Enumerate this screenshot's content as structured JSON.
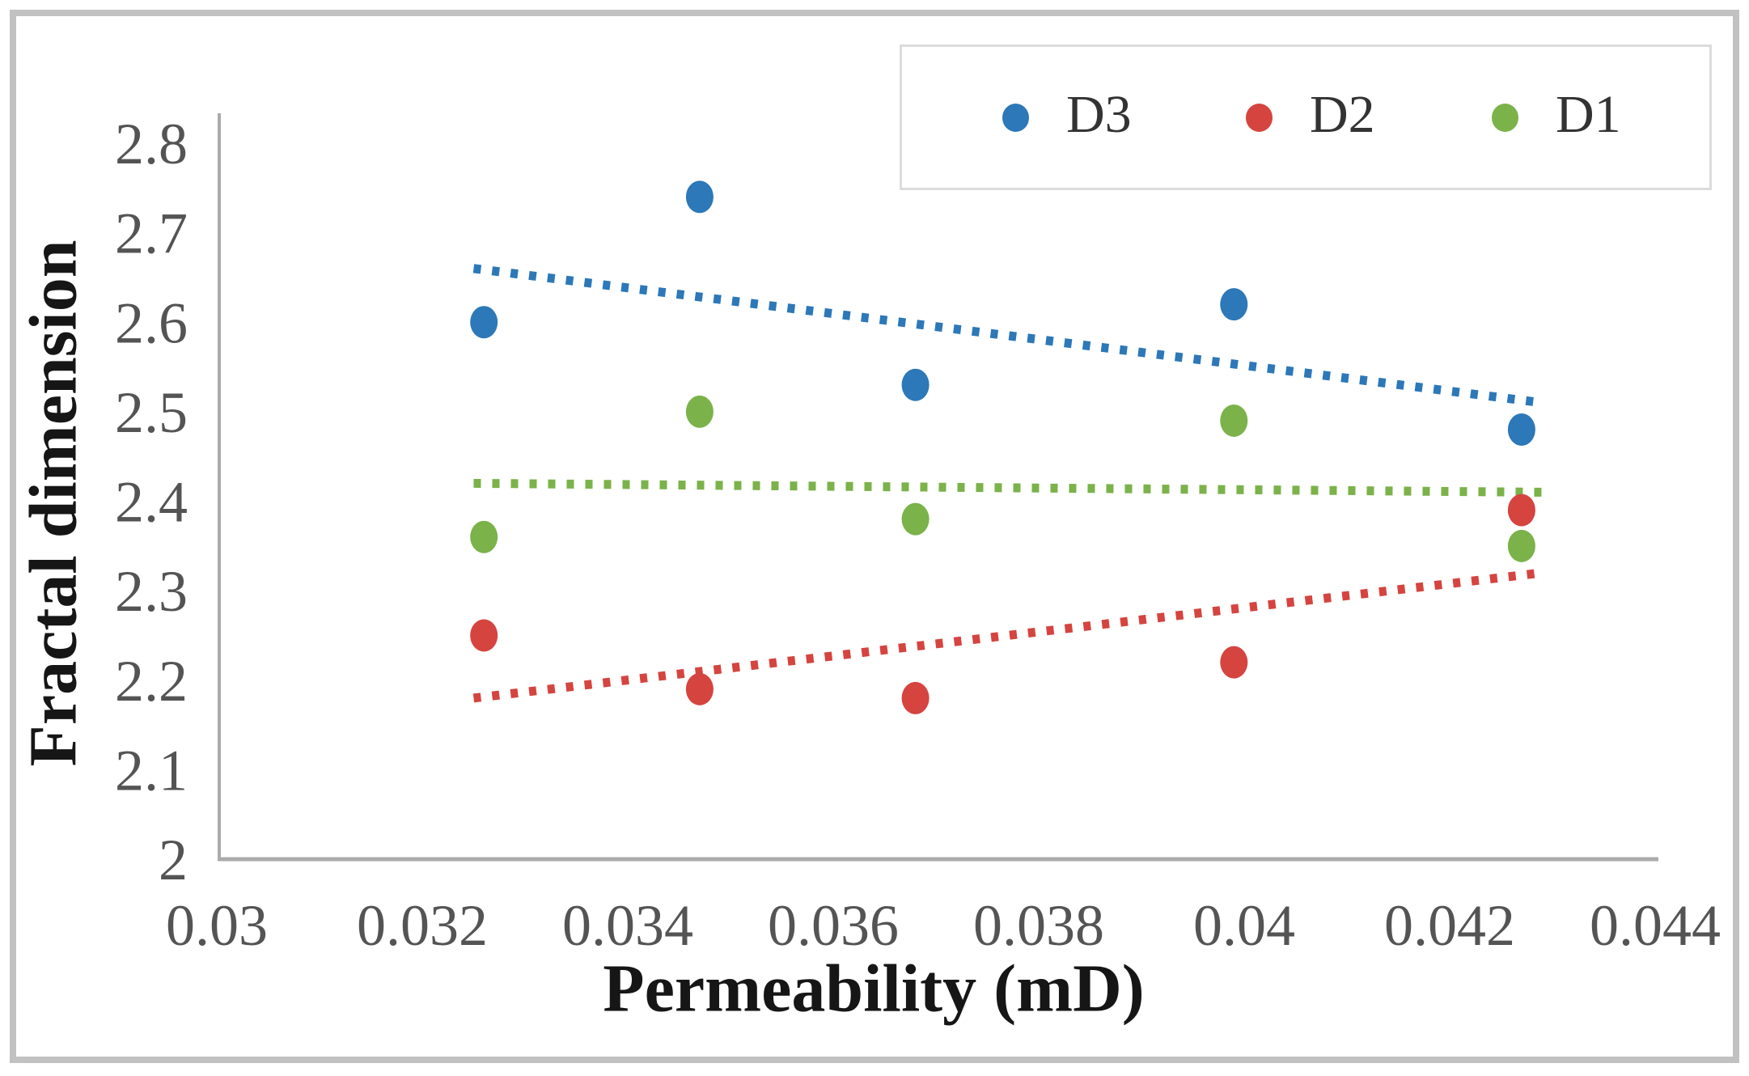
{
  "chart_data": {
    "type": "scatter",
    "title": "",
    "xlabel": "Permeability (mD)",
    "ylabel": "Fractal dimension",
    "xlim": [
      0.03,
      0.044
    ],
    "ylim": [
      2.0,
      2.8
    ],
    "grid": false,
    "legend_position": "top-right",
    "x_ticks": [
      0.03,
      0.032,
      0.034,
      0.036,
      0.038,
      0.04,
      0.042,
      0.044
    ],
    "x_tick_labels": [
      "0.03",
      "0.032",
      "0.034",
      "0.036",
      "0.038",
      "0.04",
      "0.042",
      "0.044"
    ],
    "y_ticks": [
      2,
      2.1,
      2.2,
      2.3,
      2.4,
      2.5,
      2.6,
      2.7,
      2.8
    ],
    "y_tick_labels": [
      "2",
      "2.1",
      "2.2",
      "2.3",
      "2.4",
      "2.5",
      "2.6",
      "2.7",
      "2.8"
    ],
    "x": [
      0.0326,
      0.0347,
      0.0368,
      0.0399,
      0.0427
    ],
    "series": [
      {
        "name": "D3",
        "color": "#2C78B8",
        "values": [
          2.6,
          2.74,
          2.53,
          2.62,
          2.48
        ],
        "trendline": {
          "style": "dotted",
          "x_start": 0.0325,
          "y_start": 2.66,
          "x_end": 0.0429,
          "y_end": 2.51
        }
      },
      {
        "name": "D2",
        "color": "#D5443F",
        "values": [
          2.25,
          2.19,
          2.18,
          2.22,
          2.39
        ],
        "trendline": {
          "style": "dotted",
          "x_start": 0.0325,
          "y_start": 2.18,
          "x_end": 0.0429,
          "y_end": 2.32
        }
      },
      {
        "name": "D1",
        "color": "#7BB24A",
        "values": [
          2.36,
          2.5,
          2.38,
          2.49,
          2.35
        ],
        "trendline": {
          "style": "dotted",
          "x_start": 0.0325,
          "y_start": 2.42,
          "x_end": 0.0429,
          "y_end": 2.41
        }
      }
    ],
    "colors": {
      "axis_line": "#ABABAB",
      "tick_text": "#545454",
      "title_text": "#161616",
      "outer_border": "#C1C1C1",
      "legend_border": "#DCDCDC",
      "background": "#FFFFFF"
    }
  }
}
